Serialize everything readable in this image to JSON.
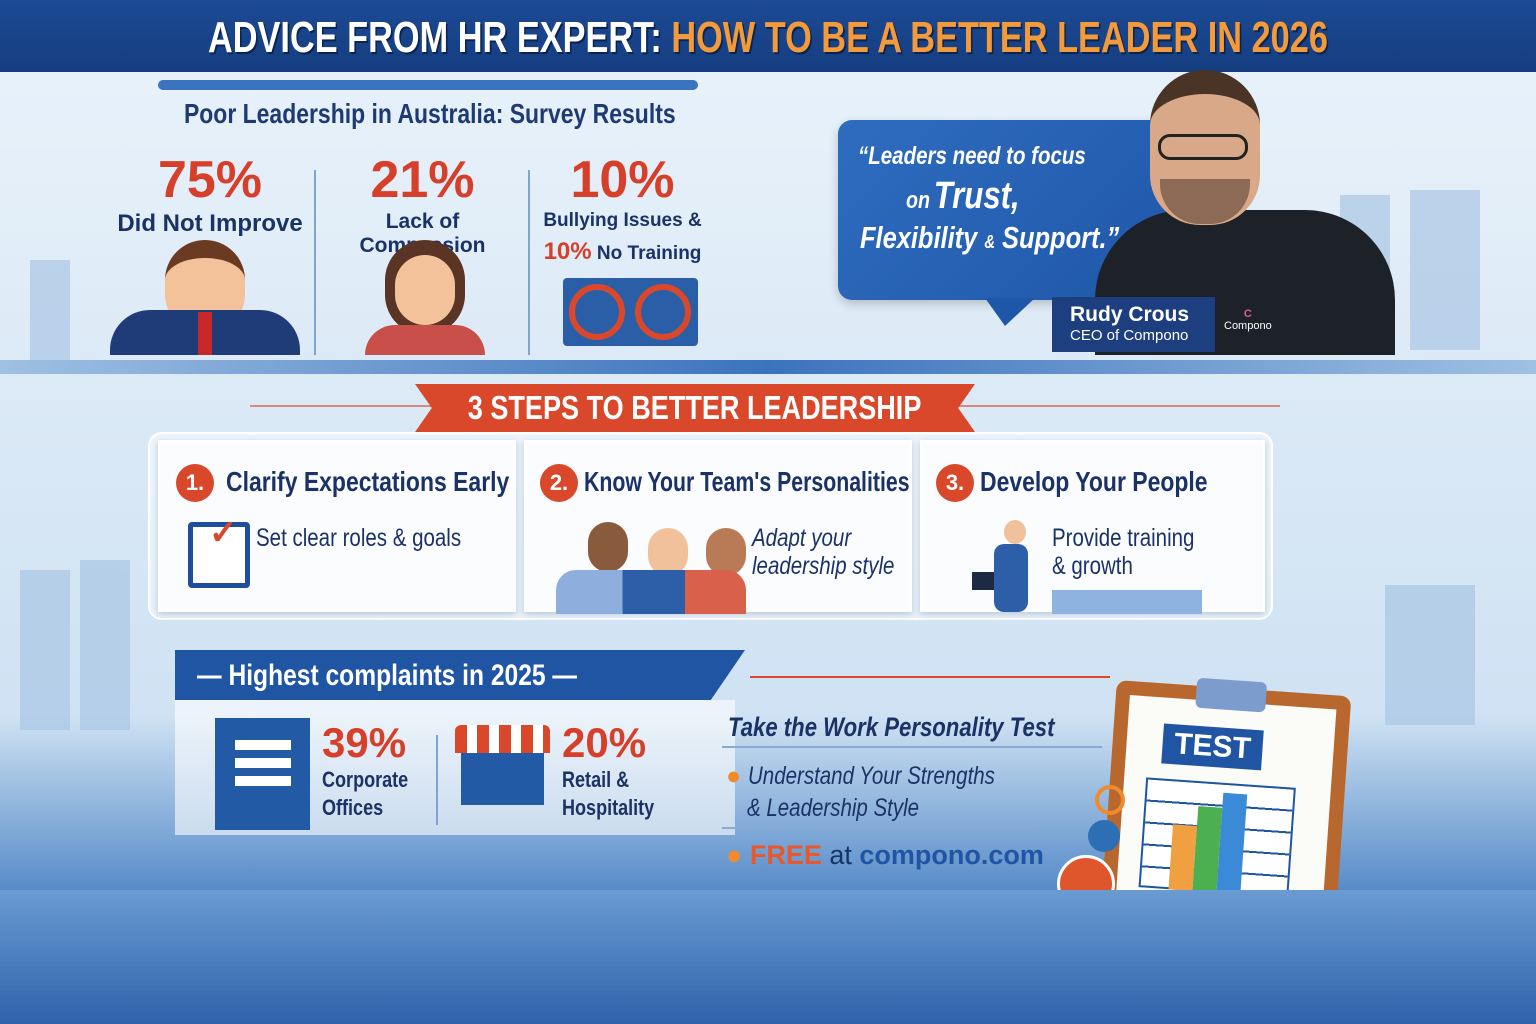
{
  "header": {
    "title_white": "ADVICE FROM HR EXPERT:",
    "title_orange": "HOW TO BE A BETTER LEADER IN 2026"
  },
  "survey": {
    "title": "Poor Leadership in Australia: Survey Results",
    "stats": [
      {
        "value": "75%",
        "label": "Did Not Improve"
      },
      {
        "value": "21%",
        "label": "Lack of Compassion"
      },
      {
        "value": "10%",
        "label": "Bullying Issues &",
        "value2": "10%",
        "label2": "No Training"
      }
    ]
  },
  "quote": {
    "line1": "“Leaders need to focus",
    "line2_small": "on",
    "line2_big": "Trust,",
    "line3a": "Flexibility",
    "line3_amp": "&",
    "line3b": "Support.”"
  },
  "expert": {
    "name": "Rudy Crous",
    "role": "CEO of Compono",
    "shirt_logo": "Compono"
  },
  "steps": {
    "banner": "3 STEPS TO BETTER LEADERSHIP",
    "items": [
      {
        "num": "1.",
        "title": "Clarify Expectations Early",
        "desc": "Set clear roles & goals"
      },
      {
        "num": "2.",
        "title": "Know Your Team's Personalities",
        "desc1": "Adapt your",
        "desc2": "leadership style"
      },
      {
        "num": "3.",
        "title": "Develop Your People",
        "desc1": "Provide training",
        "desc2": "& growth"
      }
    ]
  },
  "complaints": {
    "title": "Highest complaints in 2025",
    "items": [
      {
        "value": "39%",
        "label1": "Corporate",
        "label2": "Offices"
      },
      {
        "value": "20%",
        "label1": "Retail &",
        "label2": "Hospitality"
      }
    ]
  },
  "cta": {
    "title": "Take the Work Personality Test",
    "bullet1a": "Understand Your Strengths",
    "bullet1b": "& Leadership Style",
    "free": "FREE",
    "at": "at",
    "site": "compono.com",
    "clipboard_label": "TEST"
  },
  "colors": {
    "navy": "#1c4a94",
    "orange": "#f39a3a",
    "red": "#d9482b",
    "text": "#1b3266"
  }
}
